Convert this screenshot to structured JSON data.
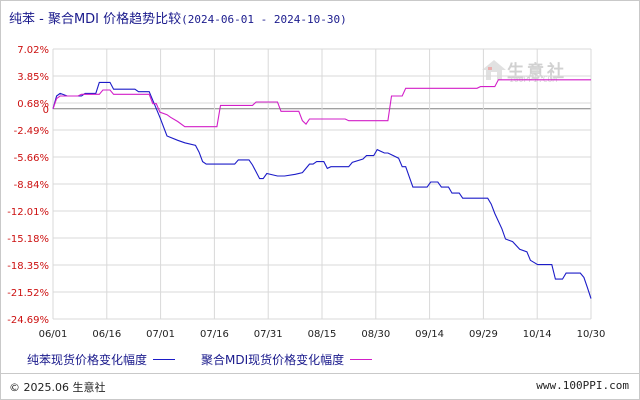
{
  "title": {
    "main": "纯苯 - 聚合MDI 价格趋势比较",
    "range": "(2024-06-01 - 2024-10-30)"
  },
  "watermark": {
    "name": "生意社",
    "url": "100PPI.COM"
  },
  "footer": {
    "copyright": "© 2025.06 生意社",
    "site": "www.100PPI.com"
  },
  "colors": {
    "series1": "#1c1cc8",
    "series2": "#d21fc8",
    "axis_text": "#cc1010",
    "grid": "#d9d9d9",
    "zero_line": "#808080"
  },
  "chart_data": {
    "type": "line",
    "ylim": [
      -24.69,
      7.02
    ],
    "yticks": [
      "7.02%",
      "3.85%",
      "0.68%",
      "0",
      "-2.49%",
      "-5.66%",
      "-8.84%",
      "-12.01%",
      "-15.18%",
      "-18.35%",
      "-21.52%",
      "-24.69%"
    ],
    "ytick_values": [
      7.02,
      3.85,
      0.68,
      0,
      -2.49,
      -5.66,
      -8.84,
      -12.01,
      -15.18,
      -18.35,
      -21.52,
      -24.69
    ],
    "xticks": [
      "06/01",
      "06/16",
      "07/01",
      "07/16",
      "07/31",
      "08/15",
      "08/30",
      "09/14",
      "09/29",
      "10/14",
      "10/30"
    ],
    "x_range": [
      "2024-06-01",
      "2024-10-30"
    ],
    "grid": true,
    "legend_position": "bottom",
    "series": [
      {
        "name": "纯苯现货价格变化幅度",
        "color": "#1c1cc8",
        "points": [
          [
            "2024-06-01",
            0
          ],
          [
            "2024-06-02",
            1.5
          ],
          [
            "2024-06-03",
            1.8
          ],
          [
            "2024-06-05",
            1.5
          ],
          [
            "2024-06-09",
            1.5
          ],
          [
            "2024-06-10",
            1.8
          ],
          [
            "2024-06-13",
            1.8
          ],
          [
            "2024-06-14",
            3.1
          ],
          [
            "2024-06-17",
            3.1
          ],
          [
            "2024-06-18",
            2.3
          ],
          [
            "2024-06-24",
            2.3
          ],
          [
            "2024-06-25",
            2.0
          ],
          [
            "2024-06-28",
            2.0
          ],
          [
            "2024-06-29",
            1.0
          ],
          [
            "2024-07-01",
            -1.0
          ],
          [
            "2024-07-03",
            -3.2
          ],
          [
            "2024-07-06",
            -3.7
          ],
          [
            "2024-07-08",
            -4.0
          ],
          [
            "2024-07-11",
            -4.3
          ],
          [
            "2024-07-12",
            -5.1
          ],
          [
            "2024-07-13",
            -6.2
          ],
          [
            "2024-07-14",
            -6.5
          ],
          [
            "2024-07-22",
            -6.5
          ],
          [
            "2024-07-23",
            -6.0
          ],
          [
            "2024-07-26",
            -6.0
          ],
          [
            "2024-07-27",
            -6.6
          ],
          [
            "2024-07-29",
            -8.2
          ],
          [
            "2024-07-30",
            -8.2
          ],
          [
            "2024-07-31",
            -7.6
          ],
          [
            "2024-08-03",
            -7.9
          ],
          [
            "2024-08-05",
            -7.9
          ],
          [
            "2024-08-08",
            -7.7
          ],
          [
            "2024-08-10",
            -7.5
          ],
          [
            "2024-08-12",
            -6.5
          ],
          [
            "2024-08-13",
            -6.5
          ],
          [
            "2024-08-14",
            -6.2
          ],
          [
            "2024-08-16",
            -6.2
          ],
          [
            "2024-08-17",
            -7.0
          ],
          [
            "2024-08-18",
            -6.8
          ],
          [
            "2024-08-23",
            -6.8
          ],
          [
            "2024-08-24",
            -6.3
          ],
          [
            "2024-08-27",
            -5.9
          ],
          [
            "2024-08-28",
            -5.5
          ],
          [
            "2024-08-30",
            -5.5
          ],
          [
            "2024-08-31",
            -4.8
          ],
          [
            "2024-09-02",
            -5.2
          ],
          [
            "2024-09-03",
            -5.2
          ],
          [
            "2024-09-04",
            -5.4
          ],
          [
            "2024-09-06",
            -5.8
          ],
          [
            "2024-09-07",
            -6.8
          ],
          [
            "2024-09-08",
            -6.8
          ],
          [
            "2024-09-09",
            -8.0
          ],
          [
            "2024-09-10",
            -9.2
          ],
          [
            "2024-09-14",
            -9.2
          ],
          [
            "2024-09-15",
            -8.6
          ],
          [
            "2024-09-17",
            -8.6
          ],
          [
            "2024-09-18",
            -9.2
          ],
          [
            "2024-09-20",
            -9.2
          ],
          [
            "2024-09-21",
            -9.9
          ],
          [
            "2024-09-23",
            -9.9
          ],
          [
            "2024-09-24",
            -10.5
          ],
          [
            "2024-10-01",
            -10.5
          ],
          [
            "2024-10-02",
            -11.2
          ],
          [
            "2024-10-03",
            -12.3
          ],
          [
            "2024-10-05",
            -14.1
          ],
          [
            "2024-10-06",
            -15.3
          ],
          [
            "2024-10-08",
            -15.6
          ],
          [
            "2024-10-10",
            -16.5
          ],
          [
            "2024-10-12",
            -16.8
          ],
          [
            "2024-10-13",
            -17.8
          ],
          [
            "2024-10-15",
            -18.3
          ],
          [
            "2024-10-19",
            -18.3
          ],
          [
            "2024-10-20",
            -20.0
          ],
          [
            "2024-10-22",
            -20.0
          ],
          [
            "2024-10-23",
            -19.3
          ],
          [
            "2024-10-27",
            -19.3
          ],
          [
            "2024-10-28",
            -19.8
          ],
          [
            "2024-10-29",
            -21.0
          ],
          [
            "2024-10-30",
            -22.3
          ]
        ]
      },
      {
        "name": "聚合MDI现货价格变化幅度",
        "color": "#d21fc8",
        "points": [
          [
            "2024-06-01",
            0
          ],
          [
            "2024-06-02",
            1.2
          ],
          [
            "2024-06-03",
            1.5
          ],
          [
            "2024-06-08",
            1.5
          ],
          [
            "2024-06-09",
            1.7
          ],
          [
            "2024-06-14",
            1.7
          ],
          [
            "2024-06-15",
            2.2
          ],
          [
            "2024-06-17",
            2.2
          ],
          [
            "2024-06-18",
            1.7
          ],
          [
            "2024-06-28",
            1.7
          ],
          [
            "2024-06-29",
            0.6
          ],
          [
            "2024-06-30",
            0.6
          ],
          [
            "2024-07-01",
            -0.4
          ],
          [
            "2024-07-03",
            -0.7
          ],
          [
            "2024-07-04",
            -1.0
          ],
          [
            "2024-07-06",
            -1.5
          ],
          [
            "2024-07-08",
            -2.1
          ],
          [
            "2024-07-17",
            -2.1
          ],
          [
            "2024-07-18",
            0.4
          ],
          [
            "2024-07-27",
            0.4
          ],
          [
            "2024-07-28",
            0.8
          ],
          [
            "2024-08-03",
            0.8
          ],
          [
            "2024-08-04",
            -0.3
          ],
          [
            "2024-08-09",
            -0.3
          ],
          [
            "2024-08-10",
            -1.4
          ],
          [
            "2024-08-11",
            -1.8
          ],
          [
            "2024-08-12",
            -1.2
          ],
          [
            "2024-08-22",
            -1.2
          ],
          [
            "2024-08-23",
            -1.4
          ],
          [
            "2024-09-03",
            -1.4
          ],
          [
            "2024-09-04",
            1.5
          ],
          [
            "2024-09-07",
            1.5
          ],
          [
            "2024-09-08",
            2.4
          ],
          [
            "2024-09-28",
            2.4
          ],
          [
            "2024-09-29",
            2.6
          ],
          [
            "2024-10-03",
            2.6
          ],
          [
            "2024-10-04",
            3.4
          ],
          [
            "2024-10-30",
            3.4
          ]
        ]
      }
    ]
  }
}
